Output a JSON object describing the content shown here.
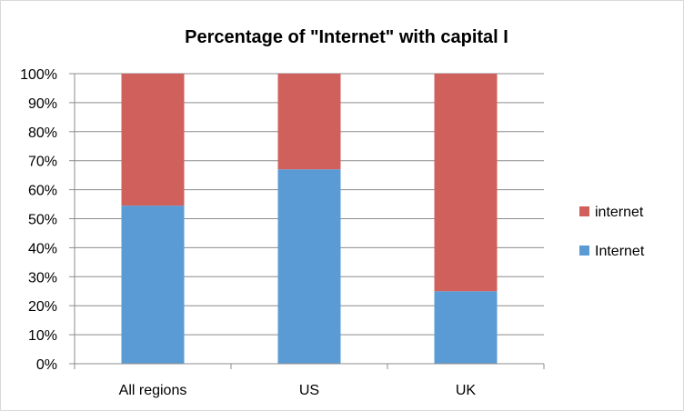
{
  "chart_data": {
    "type": "bar",
    "stacked": true,
    "title": "Percentage of \"Internet\" with capital I",
    "xlabel": "",
    "ylabel": "",
    "categories": [
      "All regions",
      "US",
      "UK"
    ],
    "series": [
      {
        "name": "Internet",
        "values": [
          54.5,
          67,
          25
        ],
        "color": "#5b9bd5"
      },
      {
        "name": "internet",
        "values": [
          45.5,
          33,
          75
        ],
        "color": "#d0605b"
      }
    ],
    "ylim": [
      0,
      100
    ],
    "yticks": [
      0,
      10,
      20,
      30,
      40,
      50,
      60,
      70,
      80,
      90,
      100
    ],
    "ytick_labels": [
      "0%",
      "10%",
      "20%",
      "30%",
      "40%",
      "50%",
      "60%",
      "70%",
      "80%",
      "90%",
      "100%"
    ],
    "grid": true,
    "legend_position": "right",
    "legend_order": [
      "internet",
      "Internet"
    ]
  }
}
